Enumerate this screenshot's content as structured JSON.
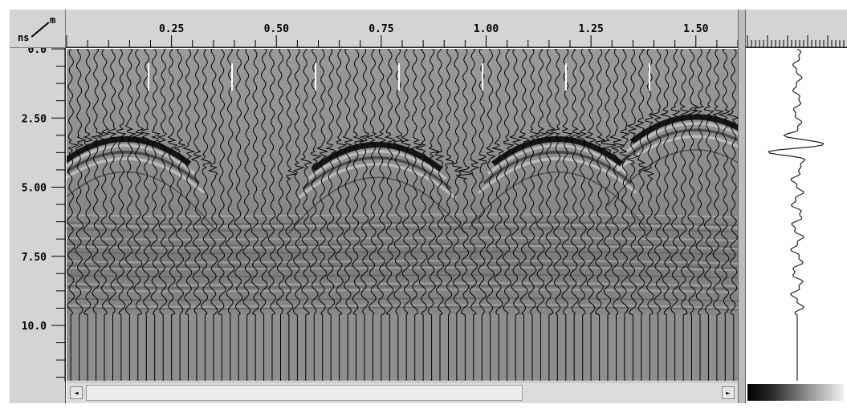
{
  "axes": {
    "x_unit": "m",
    "y_unit": "ns",
    "x_tick_labels": [
      "0.25",
      "0.50",
      "0.75",
      "1.00",
      "1.25",
      "1.50"
    ],
    "y_tick_labels": [
      "0.0",
      "2.50",
      "5.00",
      "7.50",
      "10.0"
    ],
    "x_range": [
      0.0,
      1.6
    ],
    "y_range": [
      0.0,
      12.0
    ]
  },
  "radargram": {
    "trace_count": 80,
    "hyperbolas": [
      {
        "apex_m": 0.14,
        "apex_ns": 3.0
      },
      {
        "apex_m": 0.74,
        "apex_ns": 3.2
      },
      {
        "apex_m": 1.17,
        "apex_ns": 3.0
      },
      {
        "apex_m": 1.5,
        "apex_ns": 2.2
      }
    ],
    "noise_band_ns": [
      6.0,
      9.6
    ],
    "signal_end_ns": 9.6
  },
  "trace_view": {
    "first_break_ns": 3.6,
    "signal_end_ns": 9.6
  },
  "scrollbar": {
    "left_arrow": "◄",
    "right_arrow": "►",
    "visible_fraction": 0.69
  },
  "colors": {
    "panel_bg": "#d4d4d4",
    "plot_bg": "#8e8e8e",
    "trace_line": "#000000"
  }
}
